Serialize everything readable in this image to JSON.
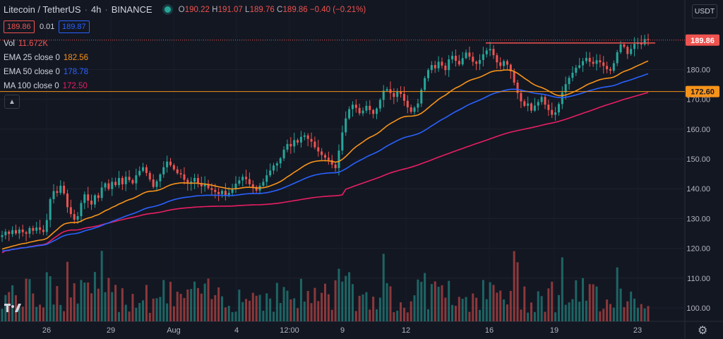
{
  "header": {
    "symbol": "Litecoin / TetherUS",
    "interval": "4h",
    "exchange": "BINANCE",
    "open_label": "O",
    "open": "190.22",
    "high_label": "H",
    "high": "191.07",
    "low_label": "L",
    "low": "189.76",
    "close_label": "C",
    "close": "189.86",
    "change": "−0.40 (−0.21%)"
  },
  "trade_box": {
    "sell": "189.86",
    "spread": "0.01",
    "buy": "189.87"
  },
  "indicators": {
    "vol": {
      "label": "Vol",
      "value": "11.672K",
      "color": "#ef5350"
    },
    "ema25": {
      "label": "EMA 25 close 0",
      "value": "182.56",
      "color": "#f7931a"
    },
    "ema50": {
      "label": "EMA 50 close 0",
      "value": "178.78",
      "color": "#2962ff"
    },
    "ma100": {
      "label": "MA 100 close 0",
      "value": "172.50",
      "color": "#e91e63"
    }
  },
  "currency_button": "USDT",
  "chart_data": {
    "type": "candlestick",
    "y_axis": {
      "ticks": [
        100,
        110,
        120,
        130,
        140,
        150,
        160,
        170,
        180
      ],
      "tick_labels": [
        "100.00",
        "110.00",
        "120.00",
        "130.00",
        "140.00",
        "150.00",
        "160.00",
        "170.00",
        "180.00"
      ]
    },
    "x_axis": {
      "tick_labels": [
        "26",
        "29",
        "Aug",
        "4",
        "12:00",
        "9",
        "12",
        "16",
        "19",
        "23"
      ]
    },
    "last_price": {
      "value": 189.86,
      "label": "189.86",
      "color": "#ef5350"
    },
    "horizontal_line": {
      "value": 172.6,
      "label": "172.60",
      "color": "#f7931a"
    },
    "resistance_line": {
      "value": 188.9,
      "color": "#ef5350"
    },
    "closes": [
      124.4,
      125.6,
      124.8,
      126.1,
      125.0,
      126.3,
      125.4,
      124.9,
      126.8,
      125.9,
      127.0,
      126.2,
      125.5,
      129.5,
      136.5,
      139.2,
      138.6,
      141.0,
      138.4,
      133.8,
      131.5,
      129.6,
      130.8,
      135.2,
      138.1,
      136.0,
      134.7,
      137.8,
      136.9,
      140.4,
      141.8,
      139.9,
      142.3,
      141.2,
      143.6,
      141.5,
      144.0,
      142.9,
      141.8,
      144.5,
      146.0,
      147.2,
      145.3,
      143.1,
      140.6,
      142.5,
      144.8,
      147.2,
      149.1,
      147.9,
      146.5,
      145.2,
      144.8,
      143.0,
      141.7,
      142.4,
      143.6,
      141.9,
      140.8,
      141.6,
      140.2,
      139.6,
      138.9,
      138.2,
      139.3,
      137.9,
      138.6,
      140.1,
      141.7,
      142.8,
      144.0,
      143.2,
      141.5,
      140.6,
      139.4,
      141.0,
      142.3,
      144.5,
      146.1,
      147.8,
      148.5,
      150.2,
      153.1,
      155.0,
      154.2,
      156.3,
      155.5,
      157.4,
      157.9,
      156.7,
      155.8,
      153.9,
      152.5,
      151.3,
      150.4,
      149.6,
      148.1,
      146.9,
      152.8,
      158.9,
      163.6,
      166.7,
      168.2,
      167.1,
      165.3,
      166.2,
      167.8,
      166.4,
      165.1,
      166.9,
      169.8,
      172.9,
      173.4,
      172.1,
      170.8,
      172.6,
      171.8,
      169.5,
      167.3,
      165.8,
      167.2,
      168.6,
      173.2,
      177.1,
      179.8,
      181.5,
      180.4,
      182.6,
      181.3,
      179.8,
      183.4,
      184.6,
      182.9,
      181.7,
      183.8,
      185.7,
      184.3,
      182.6,
      181.9,
      183.2,
      185.1,
      186.4,
      186.9,
      184.8,
      182.4,
      181.2,
      182.8,
      181.6,
      179.4,
      175.6,
      172.1,
      169.3,
      167.8,
      168.6,
      166.2,
      167.9,
      169.1,
      170.8,
      168.2,
      166.4,
      164.8,
      165.6,
      168.4,
      172.3,
      175.1,
      177.2,
      178.9,
      180.6,
      181.4,
      182.8,
      183.9,
      182.6,
      181.9,
      183.1,
      182.4,
      181.2,
      180.1,
      179.6,
      182.1,
      185.8,
      188.4,
      187.6,
      185.2,
      186.9,
      188.6,
      189.1,
      188.4,
      190.2,
      189.86
    ]
  }
}
